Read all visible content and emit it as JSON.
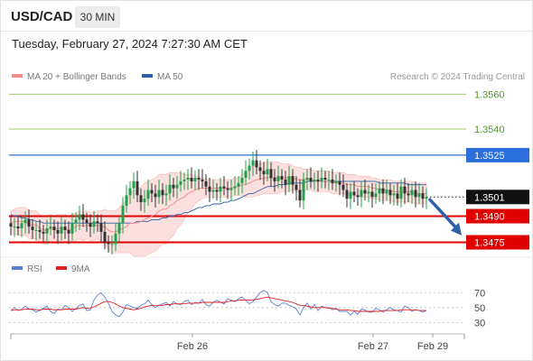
{
  "header": {
    "symbol": "USD/CAD",
    "timeframe": "30 MIN",
    "datetime": "Tuesday, February 27, 2024 7:27:30 AM CET"
  },
  "legend": {
    "ma20_label": "MA 20 + Bollinger Bands",
    "ma20_color": "#f28b82",
    "ma50_label": "MA 50",
    "ma50_color": "#2f5fa7",
    "credit": "Research © 2024 Trading Central"
  },
  "rsi_legend": {
    "rsi_label": "RSI",
    "rsi_color": "#5b7fd6",
    "ma9_label": "9MA",
    "ma9_color": "#e02020"
  },
  "chart_data": [
    {
      "type": "candlestick",
      "title": "USD/CAD 30 MIN",
      "ylim": [
        1.3468,
        1.357
      ],
      "levels": [
        {
          "value": 1.356,
          "label": "1.3560",
          "color": "#9acd6a",
          "style": "line",
          "kind": "resistance"
        },
        {
          "value": 1.354,
          "label": "1.3540",
          "color": "#9acd6a",
          "style": "line",
          "kind": "resistance"
        },
        {
          "value": 1.3525,
          "label": "1.3525",
          "color": "#2a6fdb",
          "style": "line",
          "kind": "pivot"
        },
        {
          "value": 1.3501,
          "label": "1.3501",
          "color": "#1a1a1a",
          "style": "dotted",
          "kind": "last-price"
        },
        {
          "value": 1.349,
          "label": "1.3490",
          "color": "#e00000",
          "style": "thick",
          "kind": "support"
        },
        {
          "value": 1.3475,
          "label": "1.3475",
          "color": "#e00000",
          "style": "thick",
          "kind": "support"
        }
      ],
      "forecast_arrow": {
        "from": 1.3501,
        "to": 1.3478,
        "color": "#2f5fa7",
        "direction": "down"
      },
      "x_ticks": [
        "Feb 26",
        "Feb 27",
        "Feb 29"
      ],
      "closes": [
        1.3484,
        1.3484,
        1.3483,
        1.3486,
        1.3488,
        1.3484,
        1.3482,
        1.3482,
        1.3481,
        1.348,
        1.3483,
        1.3484,
        1.3482,
        1.348,
        1.3484,
        1.3482,
        1.348,
        1.3486,
        1.3488,
        1.3491,
        1.3488,
        1.3486,
        1.3484,
        1.3487,
        1.3486,
        1.3481,
        1.3475,
        1.3474,
        1.3474,
        1.348,
        1.3486,
        1.3496,
        1.3502,
        1.3506,
        1.351,
        1.3502,
        1.3498,
        1.35,
        1.3505,
        1.3503,
        1.3501,
        1.3505,
        1.3502,
        1.3503,
        1.3508,
        1.3506,
        1.3508,
        1.351,
        1.3511,
        1.3512,
        1.351,
        1.3512,
        1.3511,
        1.351,
        1.3507,
        1.3504,
        1.3505,
        1.3504,
        1.3507,
        1.3506,
        1.3505,
        1.3506,
        1.3507,
        1.3509,
        1.3512,
        1.3516,
        1.3519,
        1.3522,
        1.3518,
        1.3516,
        1.3514,
        1.3517,
        1.3512,
        1.351,
        1.3513,
        1.3511,
        1.3508,
        1.3513,
        1.3508,
        1.3505,
        1.3499,
        1.3511,
        1.3512,
        1.351,
        1.3511,
        1.351,
        1.3512,
        1.3511,
        1.3511,
        1.3509,
        1.351,
        1.3508,
        1.3505,
        1.35,
        1.3504,
        1.3502,
        1.3501,
        1.3505,
        1.3503,
        1.3504,
        1.3501,
        1.3503,
        1.3506,
        1.3503,
        1.3505,
        1.3502,
        1.3503,
        1.35,
        1.3507,
        1.3503,
        1.3502,
        1.3505,
        1.3501,
        1.3503,
        1.35,
        1.3501
      ],
      "ma20": [
        1.3486,
        1.3487,
        1.3487,
        1.3487,
        1.3487,
        1.3485,
        1.3485,
        1.3485,
        1.3483,
        1.3482,
        1.3482,
        1.3483,
        1.3482,
        1.3483,
        1.3483,
        1.3483,
        1.3482,
        1.3483,
        1.3484,
        1.3485,
        1.3484,
        1.3485,
        1.3484,
        1.3484,
        1.3485,
        1.3484,
        1.3484,
        1.3482,
        1.3481,
        1.3481,
        1.3482,
        1.3483,
        1.3484,
        1.3486,
        1.3486,
        1.3486,
        1.3487,
        1.3488,
        1.3489,
        1.349,
        1.3491,
        1.3493,
        1.3494,
        1.3494,
        1.3496,
        1.3497,
        1.3499,
        1.35,
        1.3501,
        1.3503,
        1.3504,
        1.3505,
        1.3506,
        1.3506,
        1.3506,
        1.3506,
        1.3506,
        1.3506,
        1.3506,
        1.3506,
        1.3506,
        1.3506,
        1.3507,
        1.3507,
        1.3508,
        1.3508,
        1.3509,
        1.351,
        1.3511,
        1.3511,
        1.3512,
        1.3512,
        1.3512,
        1.3512,
        1.3512,
        1.3512,
        1.3512,
        1.3512,
        1.3512,
        1.3511,
        1.3511,
        1.3511,
        1.3511,
        1.3511,
        1.351,
        1.351,
        1.351,
        1.351,
        1.351,
        1.3509,
        1.3509,
        1.3509,
        1.3509,
        1.3508,
        1.3508,
        1.3508,
        1.3507,
        1.3507,
        1.3507,
        1.3507,
        1.3506,
        1.3506,
        1.3505,
        1.3505,
        1.3505,
        1.3505,
        1.3504,
        1.3504,
        1.3504,
        1.3504,
        1.3504,
        1.3504,
        1.3503,
        1.3503,
        1.3503,
        1.3503
      ],
      "ma50": [
        1.3491,
        1.349,
        1.349,
        1.3489,
        1.3489,
        1.3488,
        1.3488,
        1.3487,
        1.3487,
        1.3486,
        1.3486,
        1.3486,
        1.3486,
        1.3486,
        1.3486,
        1.3486,
        1.3486,
        1.3486,
        1.3486,
        1.3486,
        1.3486,
        1.3486,
        1.3486,
        1.3486,
        1.3486,
        1.3486,
        1.3486,
        1.3486,
        1.3486,
        1.3486,
        1.3486,
        1.3486,
        1.3486,
        1.3486,
        1.3486,
        1.3487,
        1.3487,
        1.3487,
        1.3487,
        1.3488,
        1.3488,
        1.3488,
        1.3489,
        1.3489,
        1.349,
        1.349,
        1.3491,
        1.3491,
        1.3492,
        1.3492,
        1.3493,
        1.3494,
        1.3495,
        1.3495,
        1.3496,
        1.3496,
        1.3497,
        1.3497,
        1.3497,
        1.3498,
        1.3498,
        1.3499,
        1.3499,
        1.35,
        1.3501,
        1.3502,
        1.3503,
        1.3503,
        1.3504,
        1.3505,
        1.3506,
        1.3507,
        1.3507,
        1.3507,
        1.3508,
        1.3508,
        1.3508,
        1.3509,
        1.3509,
        1.3509,
        1.3509,
        1.3509,
        1.351,
        1.351,
        1.351,
        1.351,
        1.351,
        1.351,
        1.351,
        1.351,
        1.351,
        1.351,
        1.351,
        1.351,
        1.351,
        1.351,
        1.351,
        1.351,
        1.351,
        1.351,
        1.351,
        1.351,
        1.3509,
        1.3509,
        1.3509,
        1.3509,
        1.3509,
        1.3509,
        1.3509,
        1.3509,
        1.3508,
        1.3508,
        1.3508,
        1.3508,
        1.3508,
        1.3508
      ],
      "bb_width": [
        0.0007,
        0.0007,
        0.0008,
        0.0008,
        0.0008,
        0.0008,
        0.0008,
        0.0008,
        0.0008,
        0.0008,
        0.0008,
        0.0008,
        0.0008,
        0.0008,
        0.0008,
        0.0008,
        0.0008,
        0.0008,
        0.0008,
        0.0008,
        0.0008,
        0.0008,
        0.0008,
        0.0008,
        0.0008,
        0.0009,
        0.001,
        0.0011,
        0.0012,
        0.0012,
        0.0013,
        0.0014,
        0.0015,
        0.0017,
        0.0019,
        0.0019,
        0.002,
        0.0021,
        0.0021,
        0.0021,
        0.0021,
        0.0021,
        0.002,
        0.002,
        0.0019,
        0.0018,
        0.0016,
        0.0015,
        0.0013,
        0.0011,
        0.001,
        0.0008,
        0.0007,
        0.0006,
        0.0005,
        0.0005,
        0.0005,
        0.0005,
        0.0005,
        0.0005,
        0.0005,
        0.0005,
        0.0005,
        0.0005,
        0.0006,
        0.0007,
        0.0008,
        0.0009,
        0.0009,
        0.0009,
        0.0009,
        0.0009,
        0.0009,
        0.0009,
        0.0009,
        0.0008,
        0.0008,
        0.0008,
        0.0007,
        0.0007,
        0.0007,
        0.0006,
        0.0006,
        0.0006,
        0.0006,
        0.0006,
        0.0006,
        0.0006,
        0.0006,
        0.0006,
        0.0006,
        0.0006,
        0.0006,
        0.0006,
        0.0006,
        0.0006,
        0.0006,
        0.0006,
        0.0006,
        0.0006,
        0.0006,
        0.0006,
        0.0006,
        0.0006,
        0.0006,
        0.0006,
        0.0006,
        0.0006,
        0.0006,
        0.0006,
        0.0006,
        0.0006,
        0.0006,
        0.0006,
        0.0006,
        0.0006
      ]
    },
    {
      "type": "line",
      "title": "RSI",
      "ylim": [
        22,
        80
      ],
      "y_ticks": [
        70,
        50,
        30
      ],
      "series": [
        {
          "name": "RSI",
          "color": "#5b7fd6",
          "values": [
            46,
            50,
            46,
            48,
            52,
            48,
            47,
            44,
            46,
            49,
            52,
            45,
            42,
            48,
            47,
            53,
            50,
            45,
            49,
            53,
            55,
            46,
            47,
            60,
            67,
            70,
            64,
            56,
            45,
            40,
            38,
            44,
            54,
            52,
            50,
            49,
            53,
            55,
            60,
            54,
            50,
            53,
            55,
            57,
            52,
            58,
            55,
            54,
            58,
            60,
            54,
            57,
            56,
            61,
            54,
            52,
            57,
            60,
            57,
            55,
            62,
            60,
            58,
            62,
            64,
            60,
            55,
            58,
            64,
            70,
            73,
            70,
            58,
            54,
            52,
            56,
            56,
            53,
            51,
            48,
            40,
            50,
            56,
            48,
            54,
            46,
            52,
            50,
            50,
            47,
            49,
            45,
            45,
            45,
            40,
            45,
            41,
            48,
            47,
            44,
            44,
            49,
            47,
            44,
            47,
            50,
            47,
            46,
            44,
            52,
            50,
            45,
            47,
            46,
            44,
            46
          ]
        },
        {
          "name": "9MA",
          "color": "#e02020",
          "values": [
            46,
            47,
            47,
            47,
            48,
            48,
            48,
            47,
            47,
            48,
            48,
            48,
            47,
            47,
            47,
            48,
            48,
            48,
            48,
            49,
            50,
            49,
            49,
            51,
            53,
            56,
            58,
            58,
            57,
            55,
            52,
            50,
            49,
            48,
            47,
            48,
            49,
            51,
            52,
            53,
            53,
            53,
            53,
            54,
            54,
            55,
            55,
            55,
            55,
            56,
            56,
            56,
            56,
            57,
            57,
            57,
            57,
            57,
            57,
            57,
            58,
            59,
            59,
            60,
            60,
            60,
            60,
            60,
            61,
            62,
            63,
            64,
            63,
            62,
            61,
            60,
            59,
            58,
            57,
            55,
            53,
            53,
            52,
            51,
            50,
            50,
            50,
            50,
            49,
            49,
            48,
            47,
            47,
            47,
            46,
            46,
            45,
            45,
            45,
            45,
            45,
            45,
            45,
            46,
            46,
            46,
            46,
            46,
            47,
            47,
            47,
            47,
            47,
            46,
            46,
            46
          ]
        }
      ]
    }
  ]
}
